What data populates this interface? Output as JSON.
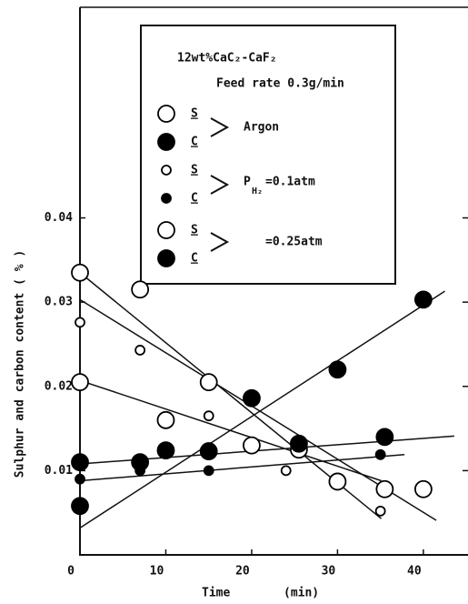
{
  "chart_data": {
    "type": "scatter",
    "legend_title": "12wt%CaC₂-CaF₂",
    "legend_subtitle": "Feed rate 0.3g/min",
    "xlabel": "Time",
    "xunit": "(min)",
    "ylabel": "Sulphur and carbon content  ( % )",
    "xlim": [
      0,
      45.2
    ],
    "ylim": [
      0,
      0.065
    ],
    "xticks": [
      0,
      10,
      20,
      30,
      40
    ],
    "yticks": [
      0.01,
      0.02,
      0.03,
      0.04
    ],
    "groups": [
      {
        "label": "Argon"
      },
      {
        "prefix": "P",
        "sub": "H₂",
        "label": "=0.1atm"
      },
      {
        "label": "=0.25atm"
      }
    ],
    "series": [
      {
        "name": "S",
        "group": 0,
        "marker": "open",
        "size": "large",
        "color": "#000000",
        "x": [
          0,
          7,
          15,
          30,
          35.5
        ],
        "values": [
          0.0335,
          0.0315,
          0.0205,
          0.0087,
          0.0078
        ],
        "fit_x": [
          0,
          35.1
        ],
        "fit_y": [
          0.0335,
          0.0043
        ]
      },
      {
        "name": "C",
        "group": 0,
        "marker": "filled",
        "size": "large",
        "color": "#000000",
        "x": [
          0,
          20,
          30,
          40
        ],
        "values": [
          0.0058,
          0.0186,
          0.022,
          0.0303
        ],
        "fit_x": [
          0,
          42.5
        ],
        "fit_y": [
          0.0032,
          0.0313
        ]
      },
      {
        "name": "S",
        "group": 1,
        "marker": "open",
        "size": "small",
        "color": "#000000",
        "x": [
          0,
          7,
          15,
          24,
          35
        ],
        "values": [
          0.0276,
          0.0243,
          0.0165,
          0.01,
          0.0052
        ],
        "fit_x": [
          0,
          41.5
        ],
        "fit_y": [
          0.0303,
          0.0041
        ]
      },
      {
        "name": "C",
        "group": 1,
        "marker": "filled",
        "size": "small",
        "color": "#000000",
        "x": [
          0,
          7,
          15,
          35
        ],
        "values": [
          0.009,
          0.01,
          0.01,
          0.0119
        ],
        "fit_x": [
          0,
          37.8
        ],
        "fit_y": [
          0.0088,
          0.0119
        ]
      },
      {
        "name": "S",
        "group": 2,
        "marker": "open",
        "size": "large",
        "color": "#000000",
        "x": [
          0,
          10,
          20,
          25.5,
          40
        ],
        "values": [
          0.0205,
          0.016,
          0.013,
          0.0125,
          0.0078
        ],
        "fit_x": [
          0,
          35.1
        ],
        "fit_y": [
          0.0207,
          0.0088
        ]
      },
      {
        "name": "C",
        "group": 2,
        "marker": "filled",
        "size": "large",
        "color": "#000000",
        "x": [
          0,
          7,
          10,
          15,
          25.5,
          35.5
        ],
        "values": [
          0.011,
          0.011,
          0.0124,
          0.0123,
          0.0132,
          0.014
        ],
        "fit_x": [
          0,
          43.6
        ],
        "fit_y": [
          0.0108,
          0.0141
        ]
      }
    ]
  }
}
